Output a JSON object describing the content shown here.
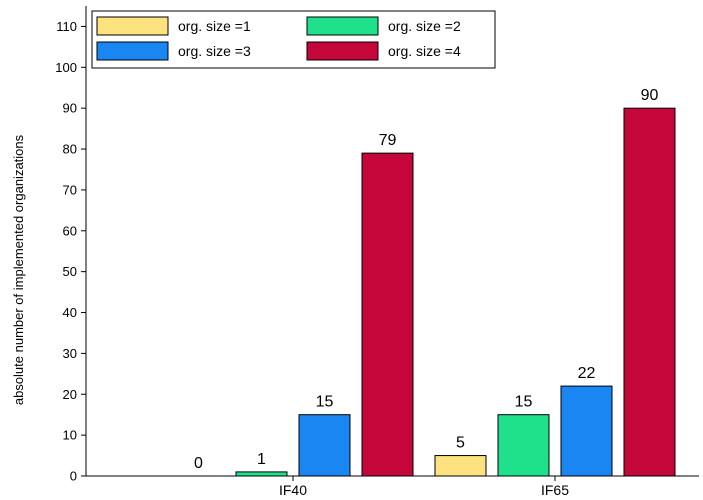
{
  "chart_data": {
    "type": "bar",
    "title": "",
    "xlabel": "",
    "ylabel": "absolute number of implemented organizations",
    "ylim": [
      0,
      115
    ],
    "yticks": [
      0,
      10,
      20,
      30,
      40,
      50,
      60,
      70,
      80,
      90,
      100,
      110
    ],
    "categories": [
      "IF40",
      "IF65"
    ],
    "series": [
      {
        "name": "org. size =1",
        "color": "#fce17f",
        "values": [
          0,
          5
        ]
      },
      {
        "name": "org. size =2",
        "color": "#1fe08b",
        "values": [
          1,
          15
        ]
      },
      {
        "name": "org. size =3",
        "color": "#1a86f2",
        "values": [
          15,
          22
        ]
      },
      {
        "name": "org. size =4",
        "color": "#c4063a",
        "values": [
          79,
          90
        ]
      }
    ],
    "legend": {
      "placement": "top-left",
      "columns": 2
    },
    "grid": false
  }
}
